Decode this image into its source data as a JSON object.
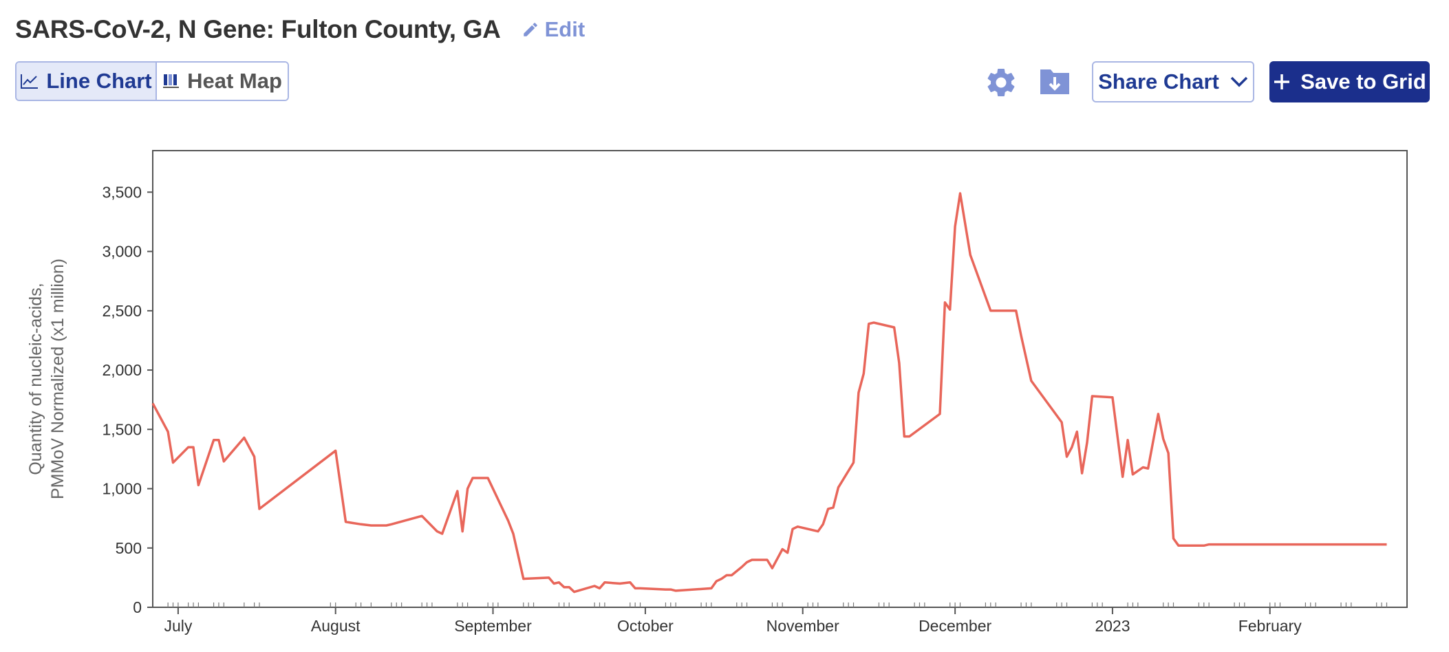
{
  "header": {
    "title": "SARS-CoV-2, N Gene: Fulton County, GA",
    "edit_label": "Edit"
  },
  "view_toggle": {
    "line_chart_label": "Line Chart",
    "heat_map_label": "Heat Map",
    "selected": "Line Chart"
  },
  "toolbar": {
    "settings_icon": "gear-icon",
    "download_icon": "download-folder-icon",
    "share_label": "Share Chart",
    "save_label": "Save to Grid"
  },
  "colors": {
    "line": "#e8665a",
    "accent": "#1b2f8c",
    "icon": "#7f93d6"
  },
  "chart_data": {
    "type": "line",
    "title": "",
    "xlabel": "",
    "ylabel": "Quantity of nucleic-acids, PMMoV Normalized (x1 million)",
    "ylabel_lines": [
      "Quantity of nucleic-acids,",
      "PMMoV Normalized (x1 million)"
    ],
    "xlim": [
      "2022-06-26",
      "2023-02-28"
    ],
    "ylim": [
      0,
      3850
    ],
    "y_ticks": [
      0,
      500,
      1000,
      1500,
      2000,
      2500,
      3000,
      3500
    ],
    "y_tick_labels": [
      "0",
      "500",
      "1,000",
      "1,500",
      "2,000",
      "2,500",
      "3,000",
      "3,500"
    ],
    "x_ticks": [
      {
        "date": "2022-07-01",
        "label": "July"
      },
      {
        "date": "2022-08-01",
        "label": "August"
      },
      {
        "date": "2022-09-01",
        "label": "September"
      },
      {
        "date": "2022-10-01",
        "label": "October"
      },
      {
        "date": "2022-11-01",
        "label": "November"
      },
      {
        "date": "2022-12-01",
        "label": "December"
      },
      {
        "date": "2023-01-01",
        "label": "2023"
      },
      {
        "date": "2023-02-01",
        "label": "February"
      }
    ],
    "grid": false,
    "series": [
      {
        "x": [
          "2022-06-26",
          "2022-06-29",
          "2022-06-30",
          "2022-07-03",
          "2022-07-04",
          "2022-07-05",
          "2022-07-08",
          "2022-07-09",
          "2022-07-10",
          "2022-07-14",
          "2022-07-16",
          "2022-07-17",
          "2022-08-01",
          "2022-08-03",
          "2022-08-06",
          "2022-08-08",
          "2022-08-11",
          "2022-08-12",
          "2022-08-18",
          "2022-08-21",
          "2022-08-22",
          "2022-08-25",
          "2022-08-26",
          "2022-08-27",
          "2022-08-28",
          "2022-08-31",
          "2022-09-04",
          "2022-09-05",
          "2022-09-07",
          "2022-09-12",
          "2022-09-13",
          "2022-09-14",
          "2022-09-15",
          "2022-09-16",
          "2022-09-17",
          "2022-09-21",
          "2022-09-22",
          "2022-09-23",
          "2022-09-26",
          "2022-09-28",
          "2022-09-29",
          "2022-09-30",
          "2022-10-05",
          "2022-10-06",
          "2022-10-07",
          "2022-10-14",
          "2022-10-15",
          "2022-10-16",
          "2022-10-17",
          "2022-10-18",
          "2022-10-20",
          "2022-10-21",
          "2022-10-22",
          "2022-10-25",
          "2022-10-26",
          "2022-10-27",
          "2022-10-28",
          "2022-10-29",
          "2022-10-30",
          "2022-10-31",
          "2022-11-04",
          "2022-11-05",
          "2022-11-06",
          "2022-11-07",
          "2022-11-08",
          "2022-11-11",
          "2022-11-12",
          "2022-11-13",
          "2022-11-14",
          "2022-11-15",
          "2022-11-19",
          "2022-11-20",
          "2022-11-21",
          "2022-11-22",
          "2022-11-28",
          "2022-11-29",
          "2022-11-30",
          "2022-12-01",
          "2022-12-02",
          "2022-12-04",
          "2022-12-08",
          "2022-12-13",
          "2022-12-14",
          "2022-12-16",
          "2022-12-22",
          "2022-12-23",
          "2022-12-24",
          "2022-12-25",
          "2022-12-26",
          "2022-12-27",
          "2022-12-28",
          "2023-01-01",
          "2023-01-03",
          "2023-01-04",
          "2023-01-05",
          "2023-01-07",
          "2023-01-08",
          "2023-01-10",
          "2023-01-11",
          "2023-01-12",
          "2023-01-13",
          "2023-01-14",
          "2023-01-15",
          "2023-01-16",
          "2023-01-19",
          "2023-01-20",
          "2023-01-21",
          "2023-01-22",
          "2023-01-25",
          "2023-01-28",
          "2023-02-01",
          "2023-02-02",
          "2023-02-03",
          "2023-02-05",
          "2023-02-09",
          "2023-02-14",
          "2023-02-15",
          "2023-02-16",
          "2023-02-17",
          "2023-02-18",
          "2023-02-22",
          "2023-02-23",
          "2023-02-24"
        ],
        "y": [
          1720,
          1480,
          1220,
          1350,
          1350,
          1030,
          1410,
          1410,
          1230,
          1430,
          1270,
          830,
          1320,
          720,
          700,
          690,
          690,
          700,
          770,
          640,
          620,
          980,
          640,
          1000,
          1090,
          1090,
          730,
          620,
          240,
          250,
          200,
          210,
          170,
          170,
          130,
          180,
          160,
          210,
          200,
          210,
          160,
          160,
          150,
          150,
          140,
          160,
          220,
          240,
          270,
          270,
          340,
          380,
          400,
          400,
          330,
          410,
          490,
          460,
          660,
          680,
          640,
          700,
          830,
          840,
          1010,
          1220,
          1810,
          1970,
          2390,
          2400,
          2360,
          2060,
          1440,
          1440,
          1630,
          2570,
          2510,
          3210,
          3490,
          2970,
          2500,
          2500,
          2290,
          1910,
          1560,
          1270,
          1350,
          1480,
          1130,
          1390,
          1780,
          1770,
          1100,
          1410,
          1120,
          1180,
          1170,
          1630,
          1420,
          1300,
          580,
          520,
          520,
          520,
          520,
          530,
          530,
          530,
          530,
          530,
          530,
          530,
          530,
          530,
          530,
          530,
          530,
          530,
          530,
          530,
          530,
          530,
          530
        ],
        "name": ""
      }
    ],
    "sample_dates": [
      "2022-06-29",
      "2022-06-30",
      "2022-07-01",
      "2022-07-03",
      "2022-07-04",
      "2022-07-05",
      "2022-07-08",
      "2022-07-09",
      "2022-07-10",
      "2022-07-14",
      "2022-07-16",
      "2022-07-17",
      "2022-07-31",
      "2022-08-01",
      "2022-08-05",
      "2022-08-06",
      "2022-08-08",
      "2022-08-12",
      "2022-08-13",
      "2022-08-14",
      "2022-08-18",
      "2022-08-19",
      "2022-08-20",
      "2022-08-25",
      "2022-08-26",
      "2022-08-27",
      "2022-08-31",
      "2022-09-01",
      "2022-09-02",
      "2022-09-07",
      "2022-09-08",
      "2022-09-09",
      "2022-09-14",
      "2022-09-15",
      "2022-09-16",
      "2022-09-21",
      "2022-09-22",
      "2022-09-23",
      "2022-09-28",
      "2022-09-29",
      "2022-09-30",
      "2022-10-05",
      "2022-10-06",
      "2022-10-07",
      "2022-10-12",
      "2022-10-13",
      "2022-10-14",
      "2022-10-19",
      "2022-10-20",
      "2022-10-21",
      "2022-10-26",
      "2022-10-27",
      "2022-10-28",
      "2022-11-02",
      "2022-11-03",
      "2022-11-04",
      "2022-11-09",
      "2022-11-10",
      "2022-11-11",
      "2022-11-16",
      "2022-11-17",
      "2022-11-18",
      "2022-11-23",
      "2022-11-24",
      "2022-11-25",
      "2022-11-30",
      "2022-12-01",
      "2022-12-02",
      "2022-12-07",
      "2022-12-08",
      "2022-12-09",
      "2022-12-14",
      "2022-12-15",
      "2022-12-16",
      "2022-12-21",
      "2022-12-22",
      "2022-12-23",
      "2022-12-28",
      "2022-12-29",
      "2022-12-30",
      "2023-01-04",
      "2023-01-05",
      "2023-01-06",
      "2023-01-11",
      "2023-01-12",
      "2023-01-13",
      "2023-01-18",
      "2023-01-19",
      "2023-01-20",
      "2023-01-25",
      "2023-01-26",
      "2023-01-27",
      "2023-02-01",
      "2023-02-02",
      "2023-02-03",
      "2023-02-08",
      "2023-02-09",
      "2023-02-10",
      "2023-02-15",
      "2023-02-16",
      "2023-02-17",
      "2023-02-22",
      "2023-02-23",
      "2023-02-24"
    ]
  }
}
